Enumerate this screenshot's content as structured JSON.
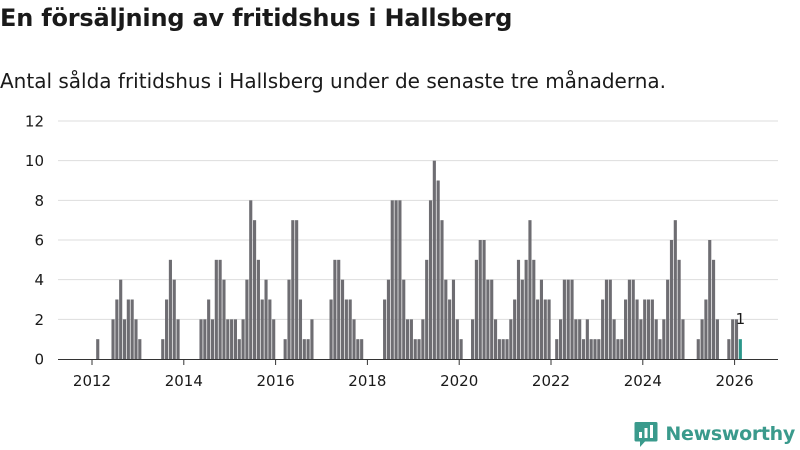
{
  "title": "En försäljning av fritidshus i Hallsberg",
  "subtitle": "Antal sålda fritidshus i Hallsberg under de senaste tre månaderna.",
  "brand": {
    "name": "Newsworthy",
    "logo_icon": "bar-chart-logo-icon"
  },
  "colors": {
    "bar": "#6e6d72",
    "highlight": "#2b978a",
    "grid": "#dddddd",
    "text": "#1a1a1a"
  },
  "chart_data": {
    "type": "bar",
    "title": "En försäljning av fritidshus i Hallsberg",
    "subtitle": "Antal sålda fritidshus i Hallsberg under de senaste tre månaderna.",
    "xlabel": "",
    "ylabel": "",
    "ylim": [
      0,
      12
    ],
    "yticks": [
      "0",
      "2",
      "4",
      "6",
      "8",
      "10",
      "12"
    ],
    "xticks": [
      "2012",
      "2014",
      "2016",
      "2018",
      "2020",
      "2022",
      "2024",
      "2026"
    ],
    "grid": "horizontal",
    "frequency": "monthly",
    "start": "2012-01",
    "end": "2026-02",
    "values": [
      0,
      1,
      0,
      0,
      0,
      2,
      3,
      4,
      2,
      3,
      3,
      2,
      1,
      0,
      0,
      0,
      0,
      0,
      1,
      3,
      5,
      4,
      2,
      0,
      0,
      0,
      0,
      0,
      2,
      2,
      3,
      2,
      5,
      5,
      4,
      2,
      2,
      2,
      1,
      2,
      4,
      8,
      7,
      5,
      3,
      4,
      3,
      2,
      0,
      0,
      1,
      4,
      7,
      7,
      3,
      1,
      1,
      2,
      0,
      0,
      0,
      0,
      3,
      5,
      5,
      4,
      3,
      3,
      2,
      1,
      1,
      0,
      0,
      0,
      0,
      0,
      3,
      4,
      8,
      8,
      8,
      4,
      2,
      2,
      1,
      1,
      2,
      5,
      8,
      10,
      9,
      7,
      4,
      3,
      4,
      2,
      1,
      0,
      0,
      2,
      5,
      6,
      6,
      4,
      4,
      2,
      1,
      1,
      1,
      2,
      3,
      5,
      4,
      5,
      7,
      5,
      3,
      4,
      3,
      3,
      0,
      1,
      2,
      4,
      4,
      4,
      2,
      2,
      1,
      2,
      1,
      1,
      1,
      3,
      4,
      4,
      2,
      1,
      1,
      3,
      4,
      4,
      3,
      2,
      3,
      3,
      3,
      2,
      1,
      2,
      4,
      6,
      7,
      5,
      2,
      0,
      0,
      0,
      1,
      2,
      3,
      6,
      5,
      2,
      0,
      0,
      1,
      2,
      2,
      1
    ],
    "highlight": {
      "period": "2026-02",
      "value": 1,
      "label": "1"
    }
  }
}
